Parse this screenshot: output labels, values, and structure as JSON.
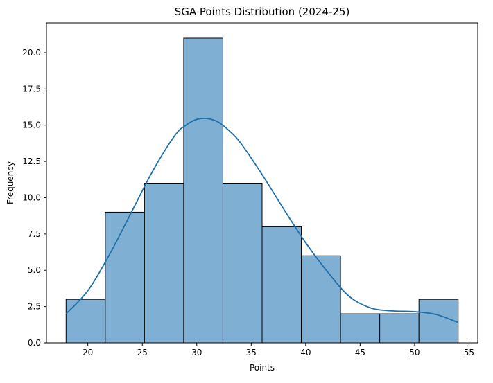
{
  "chart_data": {
    "type": "histogram",
    "title": "SGA Points Distribution (2024-25)",
    "xlabel": "Points",
    "ylabel": "Frequency",
    "xlim": [
      16.2,
      55.8
    ],
    "ylim": [
      0,
      22.05
    ],
    "x_ticks": [
      20,
      25,
      30,
      35,
      40,
      45,
      50,
      55
    ],
    "x_tick_labels": [
      "20",
      "25",
      "30",
      "35",
      "40",
      "45",
      "50",
      "55"
    ],
    "y_ticks": [
      0,
      2.5,
      5,
      7.5,
      10,
      12.5,
      15,
      17.5,
      20
    ],
    "y_tick_labels": [
      "0.0",
      "2.5",
      "5.0",
      "7.5",
      "10.0",
      "12.5",
      "15.0",
      "17.5",
      "20.0"
    ],
    "bins": [
      {
        "x0": 18.0,
        "x1": 21.6,
        "count": 3
      },
      {
        "x0": 21.6,
        "x1": 25.2,
        "count": 9
      },
      {
        "x0": 25.2,
        "x1": 28.8,
        "count": 11
      },
      {
        "x0": 28.8,
        "x1": 32.4,
        "count": 21
      },
      {
        "x0": 32.4,
        "x1": 36.0,
        "count": 11
      },
      {
        "x0": 36.0,
        "x1": 39.6,
        "count": 8
      },
      {
        "x0": 39.6,
        "x1": 43.2,
        "count": 6
      },
      {
        "x0": 43.2,
        "x1": 46.8,
        "count": 2
      },
      {
        "x0": 46.8,
        "x1": 50.4,
        "count": 2
      },
      {
        "x0": 50.4,
        "x1": 54.0,
        "count": 3
      }
    ],
    "kde": {
      "x": [
        18,
        20,
        22,
        24,
        26,
        28,
        29,
        30,
        31,
        32,
        33,
        34,
        36,
        38,
        40,
        42,
        44,
        46,
        48,
        50,
        52,
        54
      ],
      "y": [
        2.0,
        3.6,
        6.1,
        9.0,
        11.9,
        14.3,
        15.0,
        15.4,
        15.45,
        15.2,
        14.6,
        13.8,
        11.6,
        9.2,
        6.9,
        4.9,
        3.2,
        2.4,
        2.2,
        2.15,
        1.95,
        1.4
      ]
    },
    "grid": false,
    "legend": "none",
    "colors": {
      "bar_fill": "#7fb0d4",
      "bar_edge": "#000000",
      "kde_line": "#1f6fab"
    }
  }
}
